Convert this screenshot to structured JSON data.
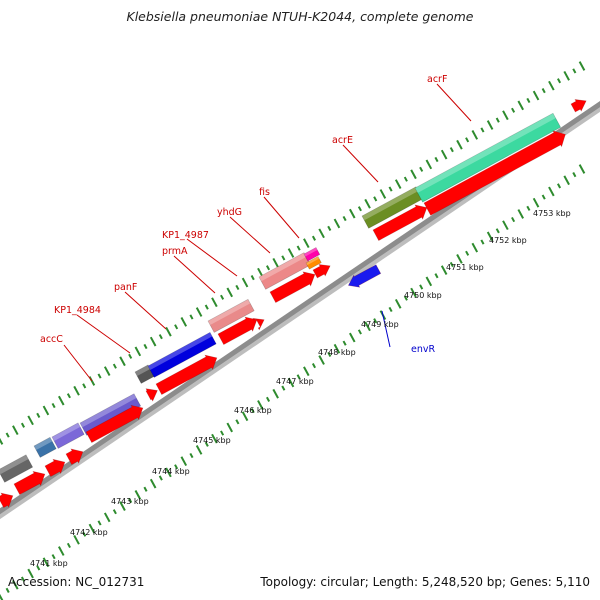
{
  "title": "Klebsiella pneumoniae NTUH-K2044, complete genome",
  "footer": {
    "accession": "Accession: NC_012731",
    "summary": "Topology: circular; Length: 5,248,520 bp; Genes: 5,110"
  },
  "ruler_labels": [
    "4741 kbp",
    "4742 kbp",
    "4743 kbp",
    "4744 kbp",
    "4745 kbp",
    "4746 kbp",
    "4747 kbp",
    "4748 kbp",
    "4749 kbp",
    "4750 kbp",
    "4751 kbp",
    "4752 kbp",
    "4753 kbp"
  ],
  "colors": {
    "backbone": "#8c8c8c",
    "tick": "#2e8b2e",
    "forward_label": "#cc0000",
    "reverse_label": "#0000cc",
    "cds": "#ff0000"
  },
  "gene_labels": [
    {
      "name": "accC",
      "strand": "forward"
    },
    {
      "name": "KP1_4984",
      "strand": "forward"
    },
    {
      "name": "panF",
      "strand": "forward"
    },
    {
      "name": "prmA",
      "strand": "forward"
    },
    {
      "name": "KP1_4987",
      "strand": "forward"
    },
    {
      "name": "yhdG",
      "strand": "forward"
    },
    {
      "name": "fis",
      "strand": "forward"
    },
    {
      "name": "acrE",
      "strand": "forward"
    },
    {
      "name": "acrF",
      "strand": "forward"
    },
    {
      "name": "envR",
      "strand": "reverse"
    }
  ]
}
